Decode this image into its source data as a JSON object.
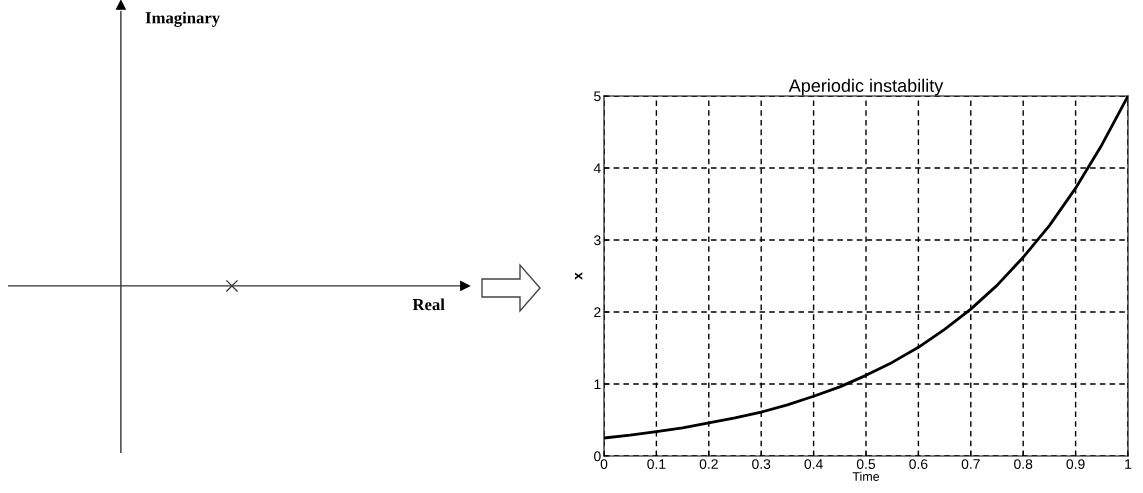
{
  "chart_data": [
    {
      "type": "other",
      "xlabel": "Real",
      "ylabel": "Imaginary"
    },
    {
      "type": "line",
      "title": "Aperiodic instability",
      "xlabel": "Time",
      "ylabel": "x",
      "color": "#000000",
      "grid": true,
      "xlim": [
        0,
        1
      ],
      "xticks": [
        0,
        0.1,
        0.2,
        0.3,
        0.4,
        0.5,
        0.6,
        0.7,
        0.8,
        0.9,
        1
      ],
      "ylim": [
        0,
        5
      ],
      "yticks": [
        0,
        1,
        2,
        3,
        4,
        5
      ],
      "x": [
        0,
        0.05,
        0.1,
        0.15,
        0.2,
        0.25,
        0.3,
        0.35,
        0.4,
        0.45,
        0.5,
        0.55,
        0.6,
        0.65,
        0.7,
        0.75,
        0.8,
        0.85,
        0.9,
        0.95,
        1
      ],
      "values": [
        0.25,
        0.29,
        0.34,
        0.39,
        0.46,
        0.53,
        0.61,
        0.71,
        0.83,
        0.96,
        1.12,
        1.3,
        1.51,
        1.76,
        2.04,
        2.37,
        2.76,
        3.2,
        3.72,
        4.32,
        5.0
      ]
    }
  ]
}
